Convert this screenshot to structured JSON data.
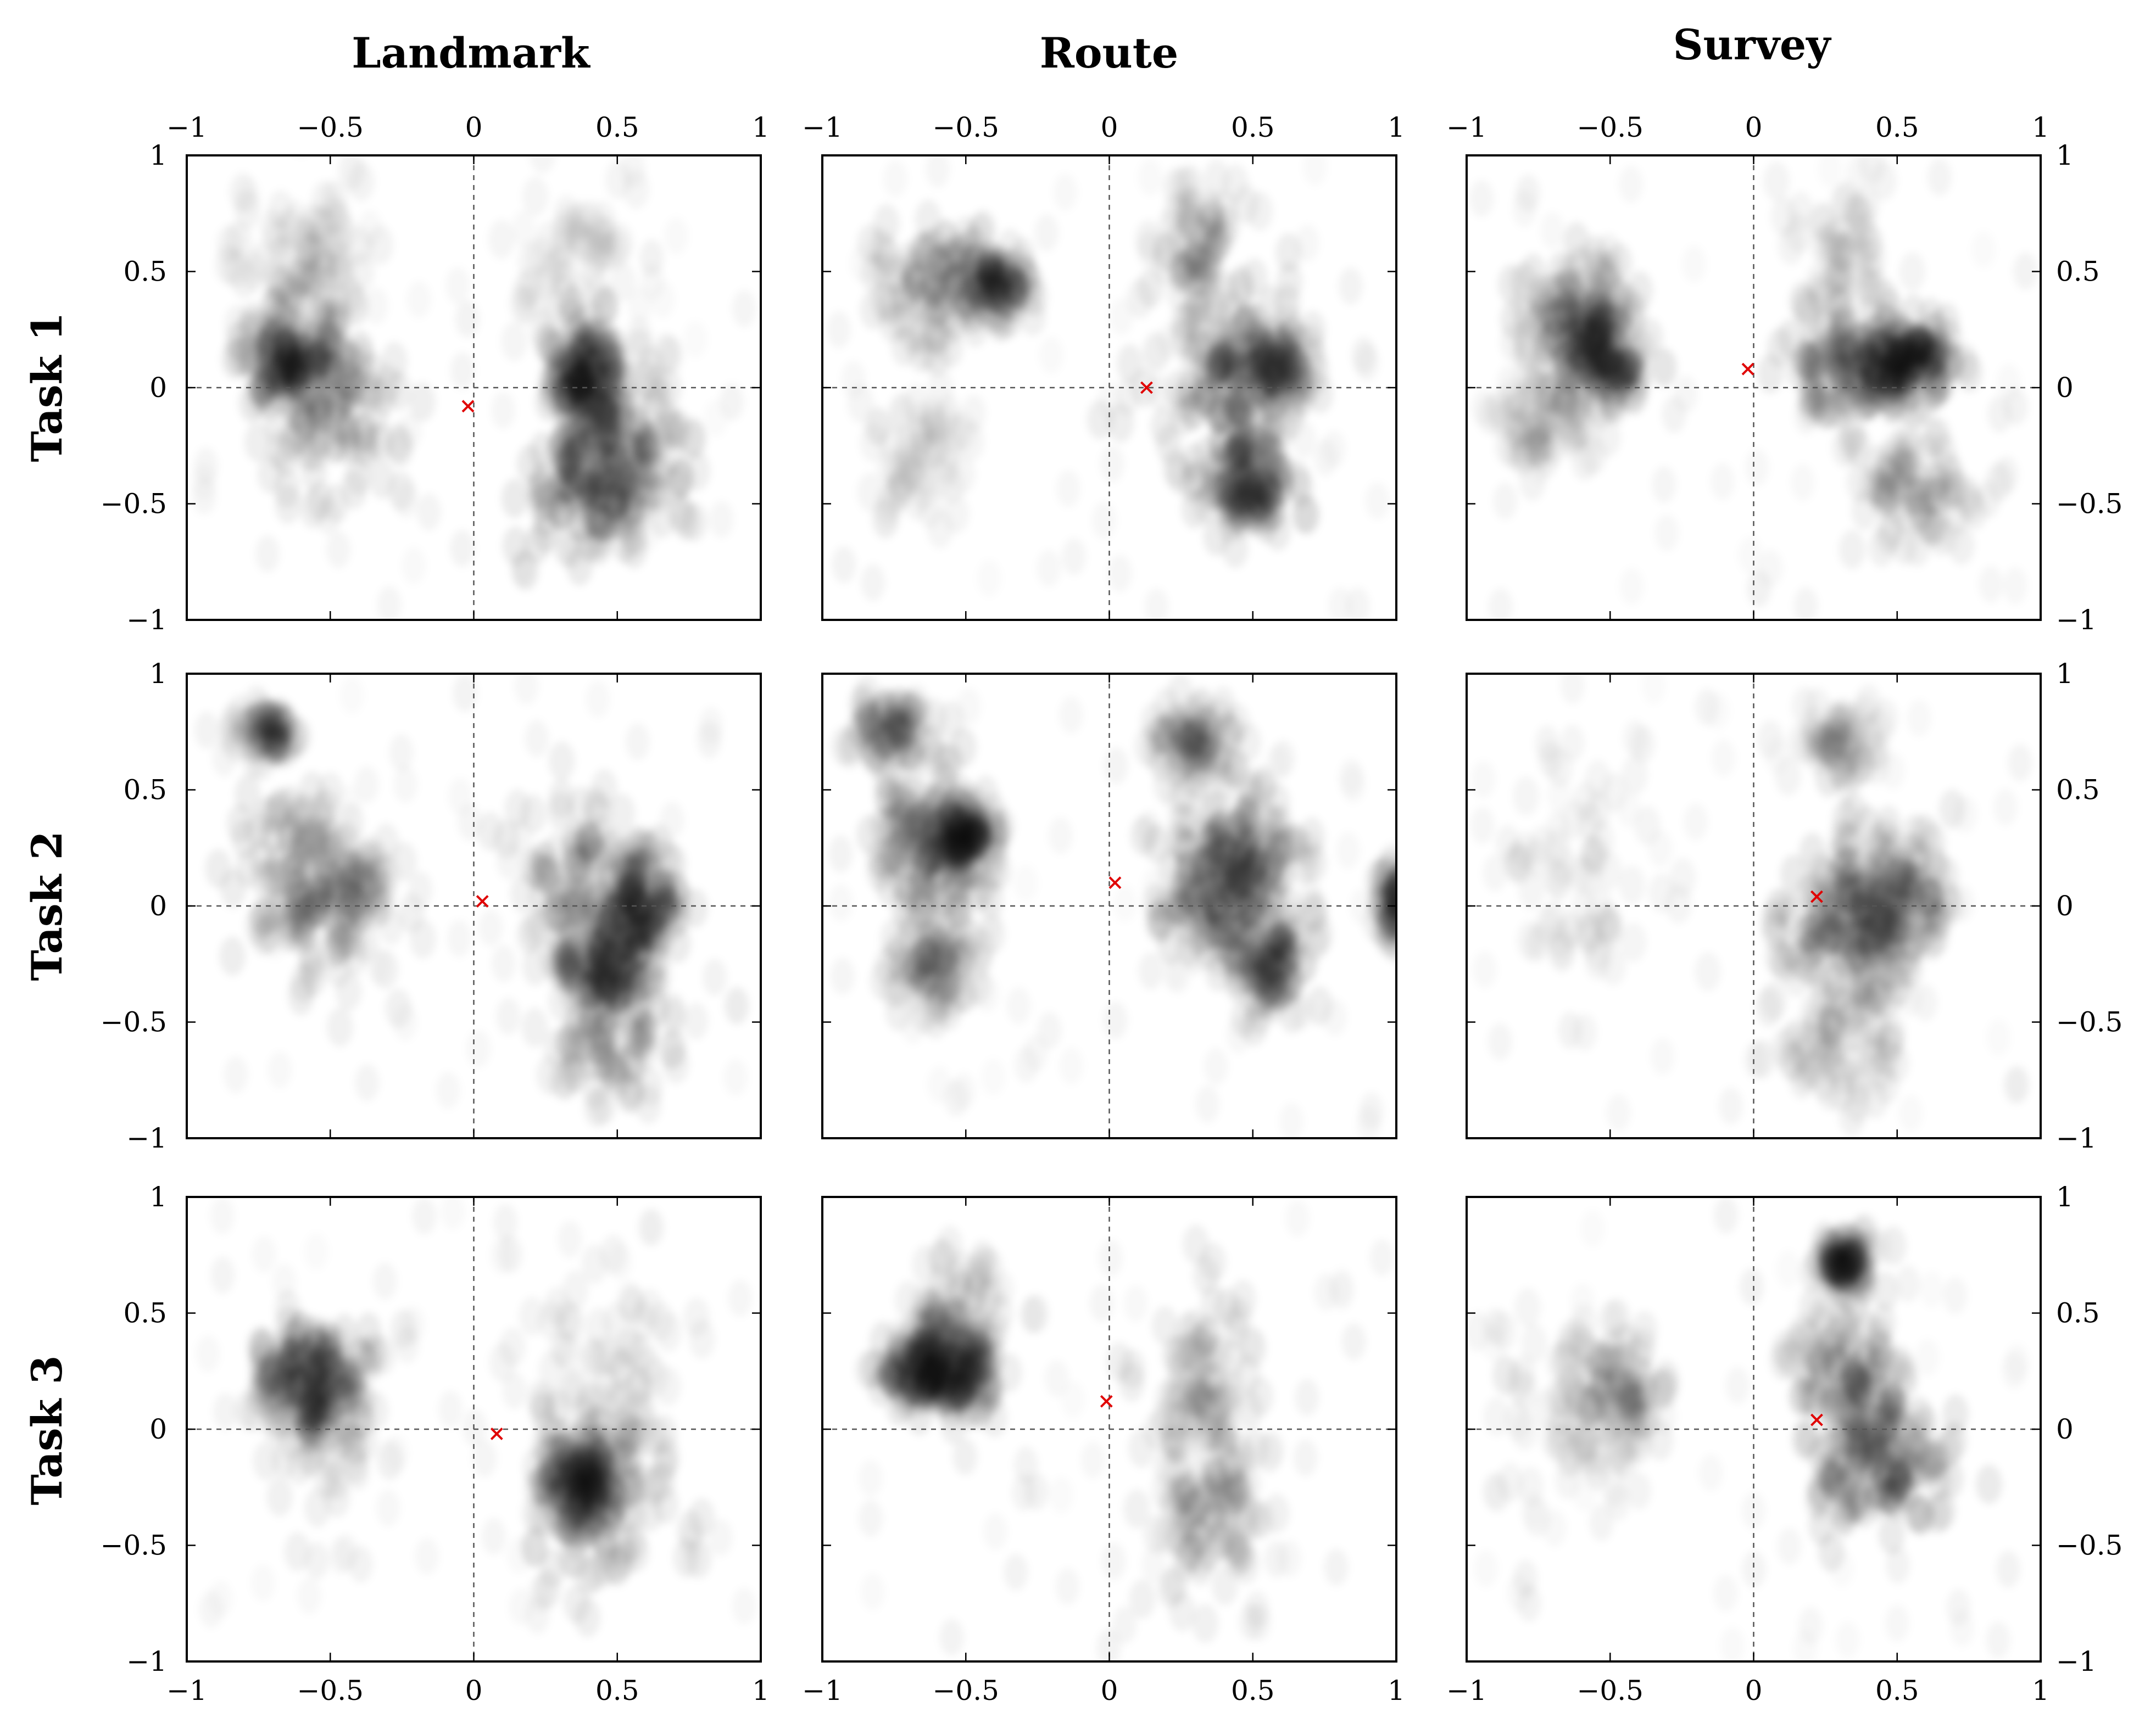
{
  "chart_data": {
    "type": "heatmap",
    "layout": "3x3 grid of 2D density plots",
    "column_titles": [
      "Landmark",
      "Route",
      "Survey"
    ],
    "row_titles": [
      "Task 1",
      "Task 2",
      "Task 3"
    ],
    "xlim": [
      -1,
      1
    ],
    "ylim": [
      -1,
      1
    ],
    "x_ticks": [
      -1,
      -0.5,
      0,
      0.5,
      1
    ],
    "y_ticks": [
      -1,
      -0.5,
      0,
      0.5,
      1
    ],
    "x_tick_labels": [
      "−1",
      "−0.5",
      "0",
      "0.5",
      "1"
    ],
    "y_tick_labels": [
      "−1",
      "−0.5",
      "0",
      "0.5",
      "1"
    ],
    "x_tick_labels_position": "top row and bottom row",
    "y_tick_labels_position": "left column and right column",
    "reference_lines": {
      "x": 0,
      "y": 0,
      "style": "dashed"
    },
    "density_color": "#000000",
    "marker_color": "#e00000",
    "marker_symbol": "×",
    "panels": [
      {
        "row": "Task 1",
        "col": "Landmark",
        "marker": [
          -0.02,
          -0.08
        ],
        "clusters": [
          {
            "x": -0.62,
            "y": 0.12,
            "w": 0.16,
            "h": 0.22,
            "weight": 0.85
          },
          {
            "x": -0.5,
            "y": -0.1,
            "w": 0.22,
            "h": 0.3,
            "weight": 0.55
          },
          {
            "x": -0.62,
            "y": 0.55,
            "w": 0.2,
            "h": 0.3,
            "weight": 0.25
          },
          {
            "x": 0.38,
            "y": 0.05,
            "w": 0.12,
            "h": 0.18,
            "weight": 0.85
          },
          {
            "x": 0.4,
            "y": -0.4,
            "w": 0.22,
            "h": 0.28,
            "weight": 0.9
          },
          {
            "x": 0.55,
            "y": -0.25,
            "w": 0.2,
            "h": 0.3,
            "weight": 0.55
          },
          {
            "x": 0.35,
            "y": 0.55,
            "w": 0.22,
            "h": 0.3,
            "weight": 0.12
          }
        ]
      },
      {
        "row": "Task 1",
        "col": "Route",
        "marker": [
          0.13,
          0.0
        ],
        "clusters": [
          {
            "x": -0.6,
            "y": 0.4,
            "w": 0.22,
            "h": 0.25,
            "weight": 0.55
          },
          {
            "x": -0.4,
            "y": 0.45,
            "w": 0.12,
            "h": 0.12,
            "weight": 0.5
          },
          {
            "x": -0.65,
            "y": -0.3,
            "w": 0.15,
            "h": 0.25,
            "weight": 0.12
          },
          {
            "x": 0.4,
            "y": 0.05,
            "w": 0.25,
            "h": 0.45,
            "weight": 0.6
          },
          {
            "x": 0.55,
            "y": 0.1,
            "w": 0.14,
            "h": 0.18,
            "weight": 0.7
          },
          {
            "x": 0.48,
            "y": -0.42,
            "w": 0.14,
            "h": 0.2,
            "weight": 0.8
          },
          {
            "x": 0.3,
            "y": 0.6,
            "w": 0.14,
            "h": 0.3,
            "weight": 0.3
          }
        ]
      },
      {
        "row": "Task 1",
        "col": "Survey",
        "marker": [
          -0.02,
          0.08
        ],
        "clusters": [
          {
            "x": -0.62,
            "y": 0.3,
            "w": 0.18,
            "h": 0.22,
            "weight": 0.75
          },
          {
            "x": -0.52,
            "y": 0.08,
            "w": 0.12,
            "h": 0.15,
            "weight": 0.6
          },
          {
            "x": -0.7,
            "y": -0.15,
            "w": 0.2,
            "h": 0.25,
            "weight": 0.25
          },
          {
            "x": 0.35,
            "y": 0.1,
            "w": 0.2,
            "h": 0.18,
            "weight": 0.75
          },
          {
            "x": 0.55,
            "y": 0.12,
            "w": 0.14,
            "h": 0.14,
            "weight": 0.85
          },
          {
            "x": 0.55,
            "y": -0.45,
            "w": 0.22,
            "h": 0.3,
            "weight": 0.35
          },
          {
            "x": 0.3,
            "y": 0.55,
            "w": 0.2,
            "h": 0.25,
            "weight": 0.15
          }
        ]
      },
      {
        "row": "Task 2",
        "col": "Landmark",
        "marker": [
          0.03,
          0.02
        ],
        "clusters": [
          {
            "x": -0.62,
            "y": 0.1,
            "w": 0.2,
            "h": 0.35,
            "weight": 0.6
          },
          {
            "x": -0.45,
            "y": 0.05,
            "w": 0.15,
            "h": 0.35,
            "weight": 0.4
          },
          {
            "x": -0.72,
            "y": 0.75,
            "w": 0.1,
            "h": 0.1,
            "weight": 0.3
          },
          {
            "x": 0.45,
            "y": -0.25,
            "w": 0.14,
            "h": 0.2,
            "weight": 0.85
          },
          {
            "x": 0.6,
            "y": 0.02,
            "w": 0.12,
            "h": 0.2,
            "weight": 0.75
          },
          {
            "x": 0.35,
            "y": 0.15,
            "w": 0.18,
            "h": 0.35,
            "weight": 0.45
          },
          {
            "x": 0.45,
            "y": -0.6,
            "w": 0.18,
            "h": 0.25,
            "weight": 0.35
          }
        ]
      },
      {
        "row": "Task 2",
        "col": "Route",
        "marker": [
          0.02,
          0.1
        ],
        "clusters": [
          {
            "x": -0.62,
            "y": 0.3,
            "w": 0.18,
            "h": 0.25,
            "weight": 0.75
          },
          {
            "x": -0.5,
            "y": 0.3,
            "w": 0.1,
            "h": 0.12,
            "weight": 0.6
          },
          {
            "x": -0.6,
            "y": -0.2,
            "w": 0.15,
            "h": 0.22,
            "weight": 0.5
          },
          {
            "x": -0.75,
            "y": 0.75,
            "w": 0.12,
            "h": 0.12,
            "weight": 0.4
          },
          {
            "x": 0.35,
            "y": 0.05,
            "w": 0.18,
            "h": 0.3,
            "weight": 0.75
          },
          {
            "x": 0.5,
            "y": 0.2,
            "w": 0.15,
            "h": 0.25,
            "weight": 0.6
          },
          {
            "x": 0.55,
            "y": -0.25,
            "w": 0.12,
            "h": 0.18,
            "weight": 0.6
          },
          {
            "x": 0.3,
            "y": 0.7,
            "w": 0.15,
            "h": 0.15,
            "weight": 0.35
          },
          {
            "x": 1.0,
            "y": 0.0,
            "w": 0.05,
            "h": 0.15,
            "weight": 0.35
          }
        ]
      },
      {
        "row": "Task 2",
        "col": "Survey",
        "marker": [
          0.22,
          0.04
        ],
        "clusters": [
          {
            "x": 0.35,
            "y": -0.05,
            "w": 0.22,
            "h": 0.3,
            "weight": 0.85
          },
          {
            "x": 0.48,
            "y": 0.05,
            "w": 0.2,
            "h": 0.28,
            "weight": 0.6
          },
          {
            "x": 0.3,
            "y": -0.55,
            "w": 0.18,
            "h": 0.3,
            "weight": 0.3
          },
          {
            "x": -0.55,
            "y": 0.1,
            "w": 0.3,
            "h": 0.4,
            "weight": 0.12
          },
          {
            "x": 0.3,
            "y": 0.7,
            "w": 0.15,
            "h": 0.15,
            "weight": 0.2
          }
        ]
      },
      {
        "row": "Task 3",
        "col": "Landmark",
        "marker": [
          0.08,
          -0.02
        ],
        "clusters": [
          {
            "x": -0.57,
            "y": 0.22,
            "w": 0.15,
            "h": 0.18,
            "weight": 0.85
          },
          {
            "x": -0.55,
            "y": 0.05,
            "w": 0.22,
            "h": 0.35,
            "weight": 0.35
          },
          {
            "x": 0.38,
            "y": -0.22,
            "w": 0.12,
            "h": 0.18,
            "weight": 0.85
          },
          {
            "x": 0.45,
            "y": -0.3,
            "w": 0.22,
            "h": 0.35,
            "weight": 0.55
          },
          {
            "x": 0.45,
            "y": 0.25,
            "w": 0.25,
            "h": 0.35,
            "weight": 0.2
          }
        ]
      },
      {
        "row": "Task 3",
        "col": "Route",
        "marker": [
          -0.01,
          0.12
        ],
        "clusters": [
          {
            "x": -0.63,
            "y": 0.25,
            "w": 0.14,
            "h": 0.15,
            "weight": 0.85
          },
          {
            "x": -0.5,
            "y": 0.25,
            "w": 0.1,
            "h": 0.15,
            "weight": 0.55
          },
          {
            "x": -0.55,
            "y": 0.45,
            "w": 0.15,
            "h": 0.25,
            "weight": 0.3
          },
          {
            "x": 0.33,
            "y": 0.1,
            "w": 0.18,
            "h": 0.45,
            "weight": 0.45
          },
          {
            "x": 0.35,
            "y": -0.4,
            "w": 0.2,
            "h": 0.35,
            "weight": 0.35
          }
        ]
      },
      {
        "row": "Task 3",
        "col": "Survey",
        "marker": [
          0.22,
          0.04
        ],
        "clusters": [
          {
            "x": 0.42,
            "y": -0.15,
            "w": 0.22,
            "h": 0.28,
            "weight": 0.9
          },
          {
            "x": 0.35,
            "y": 0.2,
            "w": 0.18,
            "h": 0.25,
            "weight": 0.55
          },
          {
            "x": 0.32,
            "y": 0.72,
            "w": 0.08,
            "h": 0.1,
            "weight": 0.55
          },
          {
            "x": -0.45,
            "y": 0.15,
            "w": 0.15,
            "h": 0.25,
            "weight": 0.35
          },
          {
            "x": -0.65,
            "y": 0.1,
            "w": 0.25,
            "h": 0.4,
            "weight": 0.12
          }
        ]
      }
    ]
  }
}
